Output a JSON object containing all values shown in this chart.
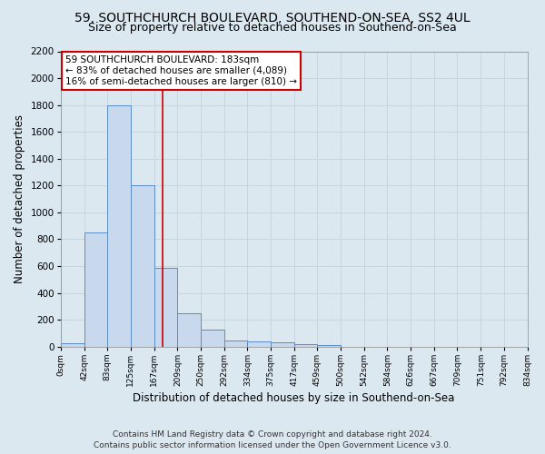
{
  "title_line1": "59, SOUTHCHURCH BOULEVARD, SOUTHEND-ON-SEA, SS2 4UL",
  "title_line2": "Size of property relative to detached houses in Southend-on-Sea",
  "xlabel": "Distribution of detached houses by size in Southend-on-Sea",
  "ylabel": "Number of detached properties",
  "footer_line1": "Contains HM Land Registry data © Crown copyright and database right 2024.",
  "footer_line2": "Contains public sector information licensed under the Open Government Licence v3.0.",
  "annotation_line1": "59 SOUTHCHURCH BOULEVARD: 183sqm",
  "annotation_line2": "← 83% of detached houses are smaller (4,089)",
  "annotation_line3": "16% of semi-detached houses are larger (810) →",
  "bar_edges": [
    0,
    42,
    83,
    125,
    167,
    209,
    250,
    292,
    334,
    375,
    417,
    459,
    500,
    542,
    584,
    626,
    667,
    709,
    751,
    792,
    834
  ],
  "bar_heights": [
    25,
    850,
    1800,
    1200,
    590,
    250,
    130,
    45,
    40,
    30,
    20,
    10,
    0,
    0,
    0,
    0,
    0,
    0,
    0,
    0
  ],
  "bar_color": "#c9d9ed",
  "bar_edge_color": "#5b8dc8",
  "tick_labels": [
    "0sqm",
    "42sqm",
    "83sqm",
    "125sqm",
    "167sqm",
    "209sqm",
    "250sqm",
    "292sqm",
    "334sqm",
    "375sqm",
    "417sqm",
    "459sqm",
    "500sqm",
    "542sqm",
    "584sqm",
    "626sqm",
    "667sqm",
    "709sqm",
    "751sqm",
    "792sqm",
    "834sqm"
  ],
  "vline_x": 183,
  "vline_color": "#cc0000",
  "ylim": [
    0,
    2200
  ],
  "xlim": [
    0,
    834
  ],
  "yticks": [
    0,
    200,
    400,
    600,
    800,
    1000,
    1200,
    1400,
    1600,
    1800,
    2000,
    2200
  ],
  "grid_color": "#c8d4e0",
  "background_color": "#dce8f0",
  "plot_bg_color": "#dce8f0",
  "title_fontsize": 10,
  "subtitle_fontsize": 9,
  "xlabel_fontsize": 8.5,
  "ylabel_fontsize": 8.5,
  "footer_fontsize": 6.5,
  "annotation_fontsize": 7.5
}
